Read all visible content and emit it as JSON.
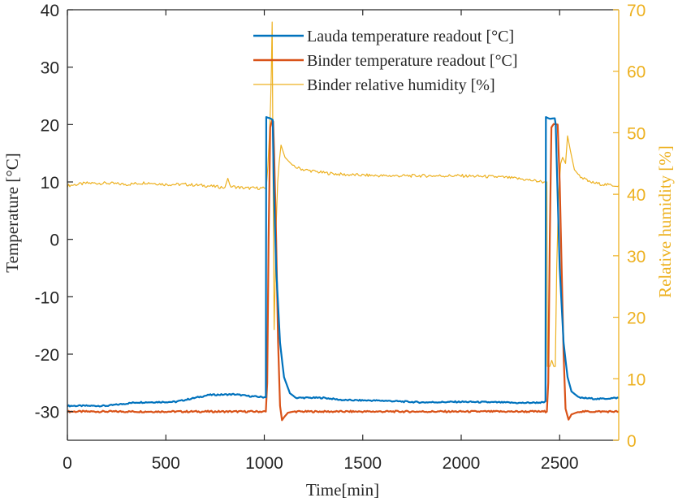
{
  "chart_data": {
    "type": "line",
    "xlabel": "Time[min]",
    "ylabel_left": "Temperature [°C]",
    "ylabel_right": "Relative humidity [%]",
    "xlim": [
      0,
      2800
    ],
    "ylim_left": [
      -35,
      40
    ],
    "ylim_right": [
      0,
      70
    ],
    "x_ticks": [
      "0",
      "500",
      "1000",
      "1500",
      "2000",
      "2500"
    ],
    "y_ticks_left": [
      "40",
      "30",
      "20",
      "10",
      "0",
      "-10",
      "-20",
      "-30"
    ],
    "y_ticks_right": [
      "70",
      "60",
      "50",
      "40",
      "30",
      "20",
      "10",
      "0"
    ],
    "grid": false,
    "legend_position": "top-right",
    "colors": {
      "lauda": "#0072BD",
      "binder": "#D95319",
      "humidity": "#EDB120",
      "axis": "#262626"
    },
    "series": [
      {
        "name": "Lauda temperature readout [°C]",
        "axis": "left",
        "points": [
          [
            0,
            -29
          ],
          [
            200,
            -29
          ],
          [
            350,
            -28.4
          ],
          [
            550,
            -28.3
          ],
          [
            650,
            -27.6
          ],
          [
            720,
            -27.1
          ],
          [
            850,
            -27
          ],
          [
            920,
            -27.3
          ],
          [
            1000,
            -27.5
          ],
          [
            1008,
            -27.5
          ],
          [
            1010,
            21.3
          ],
          [
            1035,
            21
          ],
          [
            1043,
            20.8
          ],
          [
            1048,
            10
          ],
          [
            1060,
            -5
          ],
          [
            1080,
            -18
          ],
          [
            1100,
            -24
          ],
          [
            1130,
            -26.8
          ],
          [
            1160,
            -27.6
          ],
          [
            1300,
            -27.6
          ],
          [
            1400,
            -28
          ],
          [
            1600,
            -28.1
          ],
          [
            1800,
            -28.4
          ],
          [
            2000,
            -28.3
          ],
          [
            2200,
            -28.4
          ],
          [
            2300,
            -28.5
          ],
          [
            2420,
            -28.4
          ],
          [
            2428,
            -28.2
          ],
          [
            2430,
            21.3
          ],
          [
            2450,
            21
          ],
          [
            2475,
            21.1
          ],
          [
            2480,
            20
          ],
          [
            2488,
            10
          ],
          [
            2500,
            -5
          ],
          [
            2520,
            -18
          ],
          [
            2540,
            -24
          ],
          [
            2560,
            -26.5
          ],
          [
            2600,
            -27.6
          ],
          [
            2700,
            -27.8
          ],
          [
            2800,
            -27.6
          ]
        ]
      },
      {
        "name": "Binder temperature readout [°C]",
        "axis": "left",
        "points": [
          [
            0,
            -30
          ],
          [
            1008,
            -30
          ],
          [
            1015,
            -25
          ],
          [
            1022,
            0
          ],
          [
            1030,
            19.5
          ],
          [
            1040,
            20.8
          ],
          [
            1045,
            20.5
          ],
          [
            1050,
            15
          ],
          [
            1060,
            0
          ],
          [
            1070,
            -18
          ],
          [
            1080,
            -29
          ],
          [
            1090,
            -31.5
          ],
          [
            1100,
            -31
          ],
          [
            1120,
            -30.2
          ],
          [
            1150,
            -30
          ],
          [
            2435,
            -30
          ],
          [
            2442,
            -25
          ],
          [
            2450,
            0
          ],
          [
            2458,
            19.5
          ],
          [
            2470,
            20.1
          ],
          [
            2490,
            20
          ],
          [
            2500,
            10
          ],
          [
            2510,
            -5
          ],
          [
            2520,
            -20
          ],
          [
            2530,
            -29.5
          ],
          [
            2545,
            -31.4
          ],
          [
            2560,
            -30.5
          ],
          [
            2600,
            -30
          ],
          [
            2800,
            -30
          ]
        ]
      },
      {
        "name": "Binder relative humidity [%]",
        "axis": "right",
        "points": [
          [
            0,
            41.4
          ],
          [
            100,
            41.8
          ],
          [
            200,
            41.8
          ],
          [
            300,
            41.6
          ],
          [
            400,
            41.9
          ],
          [
            500,
            41.6
          ],
          [
            600,
            41.6
          ],
          [
            700,
            41.4
          ],
          [
            800,
            41.1
          ],
          [
            815,
            42.6
          ],
          [
            825,
            41.3
          ],
          [
            900,
            41
          ],
          [
            1000,
            41
          ],
          [
            1010,
            41
          ],
          [
            1018,
            44.5
          ],
          [
            1025,
            49
          ],
          [
            1032,
            55
          ],
          [
            1036,
            60
          ],
          [
            1040,
            68
          ],
          [
            1044,
            45
          ],
          [
            1050,
            18
          ],
          [
            1055,
            25
          ],
          [
            1060,
            35
          ],
          [
            1068,
            42
          ],
          [
            1075,
            45
          ],
          [
            1085,
            48
          ],
          [
            1095,
            47
          ],
          [
            1105,
            46
          ],
          [
            1150,
            44.5
          ],
          [
            1200,
            44
          ],
          [
            1300,
            43.5
          ],
          [
            1400,
            43.2
          ],
          [
            1600,
            43
          ],
          [
            1800,
            43
          ],
          [
            2000,
            43
          ],
          [
            2200,
            42.8
          ],
          [
            2300,
            42.5
          ],
          [
            2420,
            42
          ],
          [
            2435,
            42
          ],
          [
            2438,
            12
          ],
          [
            2450,
            12
          ],
          [
            2460,
            13
          ],
          [
            2470,
            12
          ],
          [
            2478,
            12
          ],
          [
            2485,
            28
          ],
          [
            2495,
            40
          ],
          [
            2505,
            45
          ],
          [
            2515,
            46
          ],
          [
            2530,
            45
          ],
          [
            2540,
            49.5
          ],
          [
            2555,
            47
          ],
          [
            2575,
            44
          ],
          [
            2600,
            43
          ],
          [
            2650,
            42
          ],
          [
            2700,
            41.7
          ],
          [
            2750,
            41.5
          ],
          [
            2800,
            41.4
          ]
        ]
      }
    ]
  }
}
